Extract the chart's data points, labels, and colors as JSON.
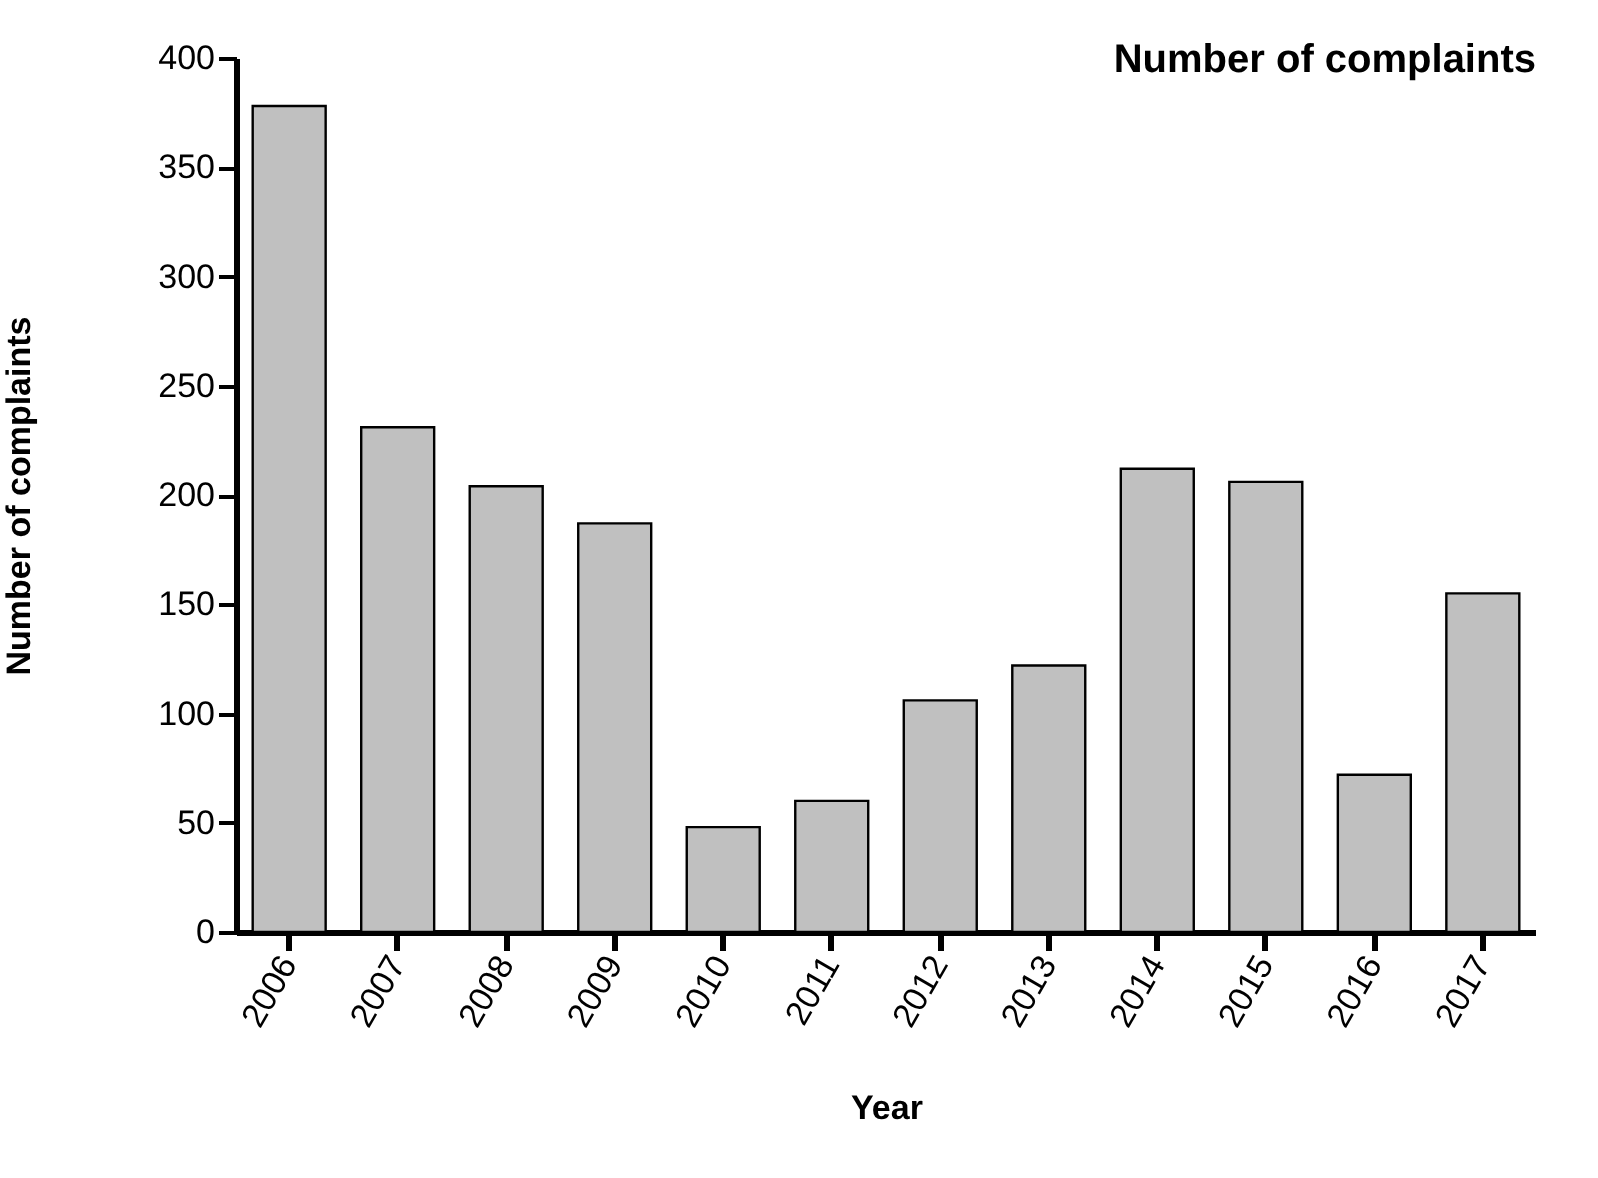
{
  "chart_data": {
    "type": "bar",
    "title": "Number of complaints",
    "xlabel": "Year",
    "ylabel": "Number of complaints",
    "categories": [
      "2006",
      "2007",
      "2008",
      "2009",
      "2010",
      "2011",
      "2012",
      "2013",
      "2014",
      "2015",
      "2016",
      "2017"
    ],
    "values": [
      378,
      231,
      204,
      187,
      48,
      60,
      106,
      122,
      212,
      206,
      72,
      155
    ],
    "color": "#c0c0c0",
    "ylim": [
      0,
      400
    ],
    "yticks": [
      0,
      50,
      100,
      150,
      200,
      250,
      300,
      350,
      400
    ],
    "grid": false
  }
}
